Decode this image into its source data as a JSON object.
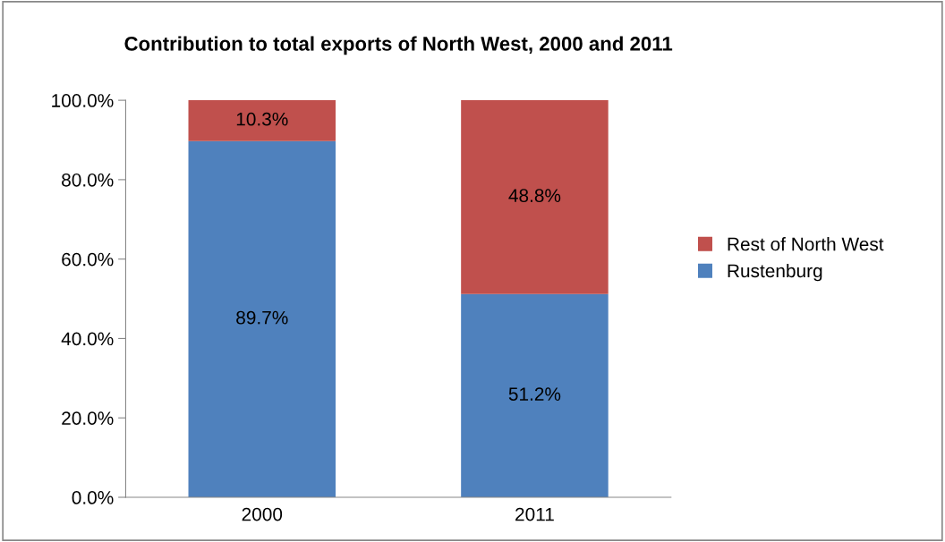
{
  "chart_data": {
    "type": "bar",
    "title": "Contribution to total exports of North West, 2000 and 2011",
    "categories": [
      "2000",
      "2011"
    ],
    "stacked": true,
    "series": [
      {
        "name": "Rustenburg",
        "color": "#4f81bd",
        "values": [
          89.7,
          51.2
        ],
        "value_labels": [
          "89.7%",
          "51.2%"
        ]
      },
      {
        "name": "Rest of North West",
        "color": "#c0504d",
        "values": [
          10.3,
          48.8
        ],
        "value_labels": [
          "10.3%",
          "48.8%"
        ]
      }
    ],
    "ylim": [
      0,
      100
    ],
    "yticks": [
      {
        "value": 0,
        "label": "0.0%"
      },
      {
        "value": 20,
        "label": "20.0%"
      },
      {
        "value": 40,
        "label": "40.0%"
      },
      {
        "value": 60,
        "label": "60.0%"
      },
      {
        "value": 80,
        "label": "80.0%"
      },
      {
        "value": 100,
        "label": "100.0%"
      }
    ],
    "grid": false,
    "legend": "right"
  }
}
